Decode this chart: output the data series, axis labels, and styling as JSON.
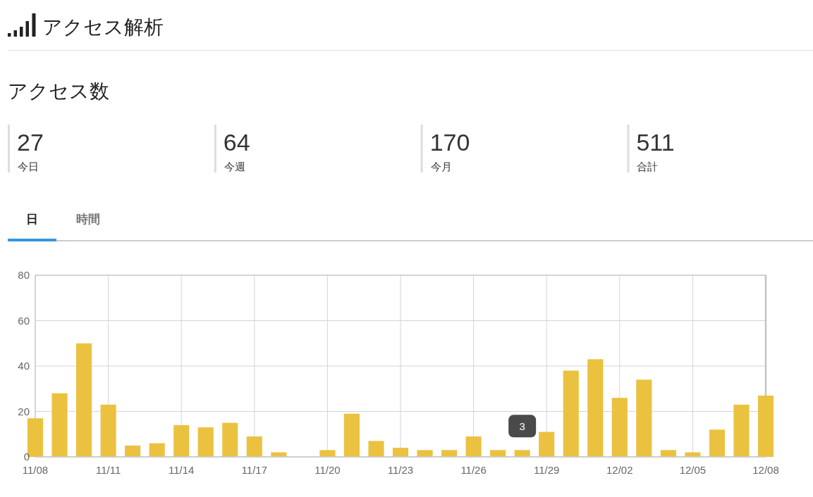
{
  "chart_data": [
    {
      "type": "other",
      "title": "アクセス解析",
      "subtitle": "アクセス数",
      "categories": [
        "今日",
        "今週",
        "今月",
        "合計"
      ],
      "values": [
        27,
        64,
        170,
        511
      ],
      "data_labels": true
    },
    {
      "type": "bar",
      "annotations": [
        "日",
        "時間",
        {
          "text": "3",
          "x": "--11-28",
          "y": 3
        }
      ],
      "x": [
        "--11-08",
        "--11-09",
        "--11-10",
        "--11-11",
        "--11-12",
        "--11-13",
        "--11-14",
        "--11-15",
        "--11-16",
        "--11-17",
        "--11-18",
        "--11-19",
        "--11-20",
        "--11-21",
        "--11-22",
        "--11-23",
        "--11-24",
        "--11-25",
        "--11-26",
        "--11-27",
        "--11-28",
        "--11-29",
        "--11-30",
        "--12-01",
        "--12-02",
        "--12-03",
        "--12-04",
        "--12-05",
        "--12-06",
        "--12-07",
        "--12-08"
      ],
      "values": [
        17,
        28,
        50,
        23,
        5,
        6,
        14,
        13,
        15,
        9,
        2,
        0,
        3,
        19,
        7,
        4,
        3,
        3,
        9,
        3,
        3,
        11,
        38,
        43,
        26,
        34,
        3,
        2,
        12,
        23,
        27
      ],
      "color": "#ebc140",
      "xlim": [
        "--11-08",
        "--12-08"
      ],
      "xticks": [
        {
          "value": "--11-08",
          "label": "11/08"
        },
        {
          "value": "--11-11",
          "label": "11/11"
        },
        {
          "value": "--11-14",
          "label": "11/14"
        },
        {
          "value": "--11-17",
          "label": "11/17"
        },
        {
          "value": "--11-20",
          "label": "11/20"
        },
        {
          "value": "--11-23",
          "label": "11/23"
        },
        {
          "value": "--11-26",
          "label": "11/26"
        },
        {
          "value": "--11-29",
          "label": "11/29"
        },
        {
          "value": "--12-02",
          "label": "12/02"
        },
        {
          "value": "--12-05",
          "label": "12/05"
        },
        {
          "value": "--12-08",
          "label": "12/08"
        }
      ],
      "ylim": [
        0,
        80
      ],
      "yticks": [
        0,
        20,
        40,
        60,
        80
      ],
      "grid": true
    }
  ]
}
